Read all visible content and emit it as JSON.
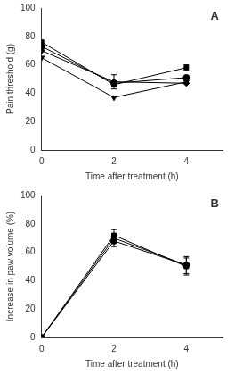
{
  "chart_data": [
    {
      "type": "line",
      "title": "A",
      "x_label": "Time after treatment (h)",
      "y_label": "Pain threshold (g)",
      "x": [
        0,
        2,
        4
      ],
      "xlim": [
        0,
        5
      ],
      "xticks": [
        0,
        2,
        4
      ],
      "ylim": [
        0,
        100
      ],
      "yticks": [
        0,
        20,
        40,
        60,
        80,
        100
      ],
      "grid": false,
      "series": [
        {
          "color": "#000000",
          "marker": "circle",
          "values": [
            73,
            47,
            51
          ],
          "errors": [
            null,
            null,
            null
          ]
        },
        {
          "color": "#000000",
          "marker": "square",
          "values": [
            76,
            46,
            58
          ],
          "errors": [
            null,
            null,
            2
          ]
        },
        {
          "color": "#000000",
          "marker": "triangle-down",
          "values": [
            65,
            37,
            48
          ],
          "errors": [
            null,
            null,
            null
          ]
        },
        {
          "color": "#000000",
          "marker": "diamond",
          "values": [
            70,
            48,
            47
          ],
          "errors": [
            null,
            5,
            null
          ]
        }
      ]
    },
    {
      "type": "line",
      "title": "B",
      "x_label": "Time after treatment (h)",
      "y_label": "Increase in paw volume (%)",
      "x": [
        0,
        2,
        4
      ],
      "xlim": [
        0,
        5
      ],
      "xticks": [
        0,
        2,
        4
      ],
      "ylim": [
        0,
        100
      ],
      "yticks": [
        0,
        20,
        40,
        60,
        80,
        100
      ],
      "grid": false,
      "series": [
        {
          "color": "#000000",
          "marker": "circle",
          "values": [
            0,
            68,
            51
          ],
          "errors": [
            null,
            4,
            6
          ]
        },
        {
          "color": "#000000",
          "marker": "square",
          "values": [
            0,
            72,
            50
          ],
          "errors": [
            null,
            4,
            6
          ]
        },
        {
          "color": "#000000",
          "marker": "triangle-down",
          "values": [
            0,
            70,
            51
          ],
          "errors": [
            null,
            null,
            null
          ]
        }
      ]
    }
  ]
}
